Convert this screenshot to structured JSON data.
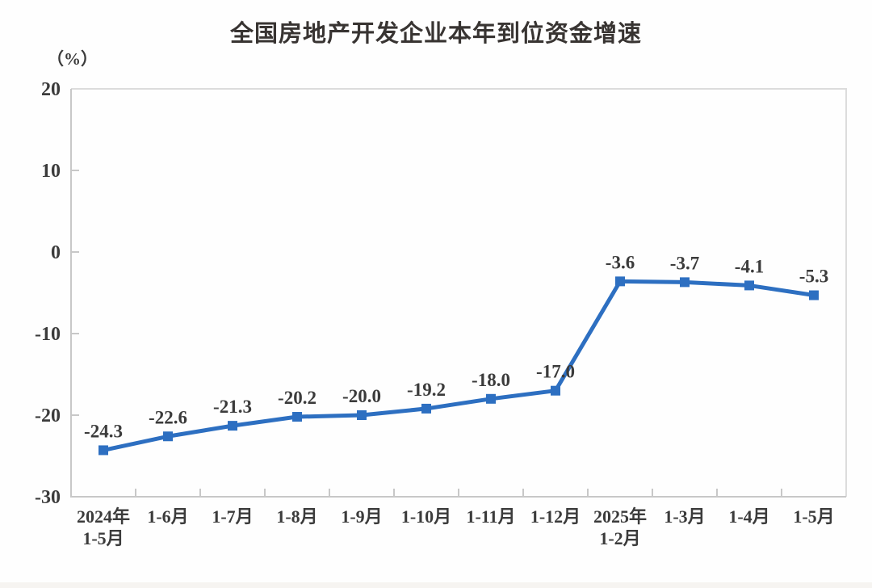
{
  "title": "全国房地产开发企业本年到位资金增速",
  "chart_data": {
    "type": "line",
    "title": "全国房地产开发企业本年到位资金增速",
    "ylabel": "（%）",
    "categories": [
      "2024年\n1-5月",
      "1-6月",
      "1-7月",
      "1-8月",
      "1-9月",
      "1-10月",
      "1-11月",
      "1-12月",
      "2025年\n1-2月",
      "1-3月",
      "1-4月",
      "1-5月"
    ],
    "values": [
      -24.3,
      -22.6,
      -21.3,
      -20.2,
      -20.0,
      -19.2,
      -18.0,
      -17.0,
      -3.6,
      -3.7,
      -4.1,
      -5.3
    ],
    "value_labels": [
      "-24.3",
      "-22.6",
      "-21.3",
      "-20.2",
      "-20.0",
      "-19.2",
      "-18.0",
      "-17.0",
      "-3.6",
      "-3.7",
      "-4.1",
      "-5.3"
    ],
    "ylim": [
      -30,
      20
    ],
    "yticks": [
      20,
      10,
      0,
      -10,
      -20,
      -30
    ],
    "grid": false,
    "legend": "none",
    "line_color": "#2d6fc1",
    "marker": "square",
    "title_color": "#383432",
    "text_color": "#3b3b3b",
    "axis_color": "#c8c8c8",
    "border_color": "#dcdcdc"
  }
}
